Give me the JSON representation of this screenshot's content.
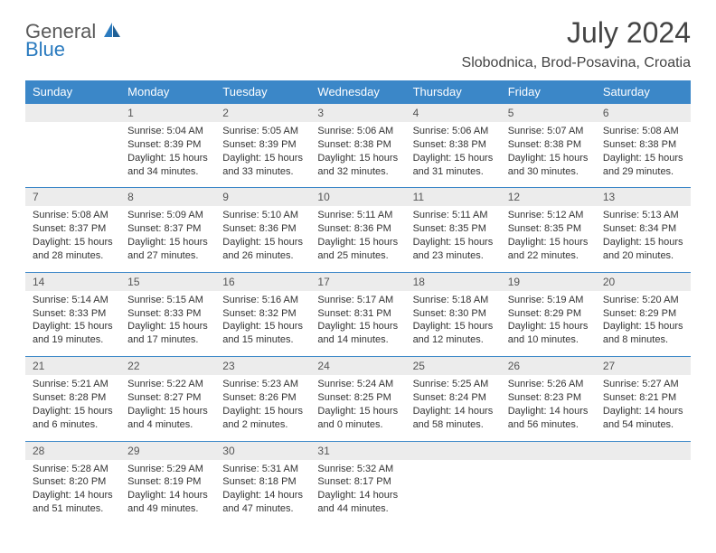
{
  "logo": {
    "main": "General",
    "accent": "Blue"
  },
  "title": "July 2024",
  "location": "Slobodnica, Brod-Posavina, Croatia",
  "colors": {
    "headerBg": "#3b87c8",
    "headerText": "#ffffff",
    "dayNumBg": "#ececec",
    "borderTop": "#3b87c8",
    "bodyText": "#333333",
    "titleText": "#444444",
    "logoGray": "#5a5a5a",
    "logoBlue": "#2b7bbf"
  },
  "dayNames": [
    "Sunday",
    "Monday",
    "Tuesday",
    "Wednesday",
    "Thursday",
    "Friday",
    "Saturday"
  ],
  "weeks": [
    [
      {
        "num": "",
        "lines": []
      },
      {
        "num": "1",
        "lines": [
          "Sunrise: 5:04 AM",
          "Sunset: 8:39 PM",
          "Daylight: 15 hours",
          "and 34 minutes."
        ]
      },
      {
        "num": "2",
        "lines": [
          "Sunrise: 5:05 AM",
          "Sunset: 8:39 PM",
          "Daylight: 15 hours",
          "and 33 minutes."
        ]
      },
      {
        "num": "3",
        "lines": [
          "Sunrise: 5:06 AM",
          "Sunset: 8:38 PM",
          "Daylight: 15 hours",
          "and 32 minutes."
        ]
      },
      {
        "num": "4",
        "lines": [
          "Sunrise: 5:06 AM",
          "Sunset: 8:38 PM",
          "Daylight: 15 hours",
          "and 31 minutes."
        ]
      },
      {
        "num": "5",
        "lines": [
          "Sunrise: 5:07 AM",
          "Sunset: 8:38 PM",
          "Daylight: 15 hours",
          "and 30 minutes."
        ]
      },
      {
        "num": "6",
        "lines": [
          "Sunrise: 5:08 AM",
          "Sunset: 8:38 PM",
          "Daylight: 15 hours",
          "and 29 minutes."
        ]
      }
    ],
    [
      {
        "num": "7",
        "lines": [
          "Sunrise: 5:08 AM",
          "Sunset: 8:37 PM",
          "Daylight: 15 hours",
          "and 28 minutes."
        ]
      },
      {
        "num": "8",
        "lines": [
          "Sunrise: 5:09 AM",
          "Sunset: 8:37 PM",
          "Daylight: 15 hours",
          "and 27 minutes."
        ]
      },
      {
        "num": "9",
        "lines": [
          "Sunrise: 5:10 AM",
          "Sunset: 8:36 PM",
          "Daylight: 15 hours",
          "and 26 minutes."
        ]
      },
      {
        "num": "10",
        "lines": [
          "Sunrise: 5:11 AM",
          "Sunset: 8:36 PM",
          "Daylight: 15 hours",
          "and 25 minutes."
        ]
      },
      {
        "num": "11",
        "lines": [
          "Sunrise: 5:11 AM",
          "Sunset: 8:35 PM",
          "Daylight: 15 hours",
          "and 23 minutes."
        ]
      },
      {
        "num": "12",
        "lines": [
          "Sunrise: 5:12 AM",
          "Sunset: 8:35 PM",
          "Daylight: 15 hours",
          "and 22 minutes."
        ]
      },
      {
        "num": "13",
        "lines": [
          "Sunrise: 5:13 AM",
          "Sunset: 8:34 PM",
          "Daylight: 15 hours",
          "and 20 minutes."
        ]
      }
    ],
    [
      {
        "num": "14",
        "lines": [
          "Sunrise: 5:14 AM",
          "Sunset: 8:33 PM",
          "Daylight: 15 hours",
          "and 19 minutes."
        ]
      },
      {
        "num": "15",
        "lines": [
          "Sunrise: 5:15 AM",
          "Sunset: 8:33 PM",
          "Daylight: 15 hours",
          "and 17 minutes."
        ]
      },
      {
        "num": "16",
        "lines": [
          "Sunrise: 5:16 AM",
          "Sunset: 8:32 PM",
          "Daylight: 15 hours",
          "and 15 minutes."
        ]
      },
      {
        "num": "17",
        "lines": [
          "Sunrise: 5:17 AM",
          "Sunset: 8:31 PM",
          "Daylight: 15 hours",
          "and 14 minutes."
        ]
      },
      {
        "num": "18",
        "lines": [
          "Sunrise: 5:18 AM",
          "Sunset: 8:30 PM",
          "Daylight: 15 hours",
          "and 12 minutes."
        ]
      },
      {
        "num": "19",
        "lines": [
          "Sunrise: 5:19 AM",
          "Sunset: 8:29 PM",
          "Daylight: 15 hours",
          "and 10 minutes."
        ]
      },
      {
        "num": "20",
        "lines": [
          "Sunrise: 5:20 AM",
          "Sunset: 8:29 PM",
          "Daylight: 15 hours",
          "and 8 minutes."
        ]
      }
    ],
    [
      {
        "num": "21",
        "lines": [
          "Sunrise: 5:21 AM",
          "Sunset: 8:28 PM",
          "Daylight: 15 hours",
          "and 6 minutes."
        ]
      },
      {
        "num": "22",
        "lines": [
          "Sunrise: 5:22 AM",
          "Sunset: 8:27 PM",
          "Daylight: 15 hours",
          "and 4 minutes."
        ]
      },
      {
        "num": "23",
        "lines": [
          "Sunrise: 5:23 AM",
          "Sunset: 8:26 PM",
          "Daylight: 15 hours",
          "and 2 minutes."
        ]
      },
      {
        "num": "24",
        "lines": [
          "Sunrise: 5:24 AM",
          "Sunset: 8:25 PM",
          "Daylight: 15 hours",
          "and 0 minutes."
        ]
      },
      {
        "num": "25",
        "lines": [
          "Sunrise: 5:25 AM",
          "Sunset: 8:24 PM",
          "Daylight: 14 hours",
          "and 58 minutes."
        ]
      },
      {
        "num": "26",
        "lines": [
          "Sunrise: 5:26 AM",
          "Sunset: 8:23 PM",
          "Daylight: 14 hours",
          "and 56 minutes."
        ]
      },
      {
        "num": "27",
        "lines": [
          "Sunrise: 5:27 AM",
          "Sunset: 8:21 PM",
          "Daylight: 14 hours",
          "and 54 minutes."
        ]
      }
    ],
    [
      {
        "num": "28",
        "lines": [
          "Sunrise: 5:28 AM",
          "Sunset: 8:20 PM",
          "Daylight: 14 hours",
          "and 51 minutes."
        ]
      },
      {
        "num": "29",
        "lines": [
          "Sunrise: 5:29 AM",
          "Sunset: 8:19 PM",
          "Daylight: 14 hours",
          "and 49 minutes."
        ]
      },
      {
        "num": "30",
        "lines": [
          "Sunrise: 5:31 AM",
          "Sunset: 8:18 PM",
          "Daylight: 14 hours",
          "and 47 minutes."
        ]
      },
      {
        "num": "31",
        "lines": [
          "Sunrise: 5:32 AM",
          "Sunset: 8:17 PM",
          "Daylight: 14 hours",
          "and 44 minutes."
        ]
      },
      {
        "num": "",
        "lines": []
      },
      {
        "num": "",
        "lines": []
      },
      {
        "num": "",
        "lines": []
      }
    ]
  ]
}
